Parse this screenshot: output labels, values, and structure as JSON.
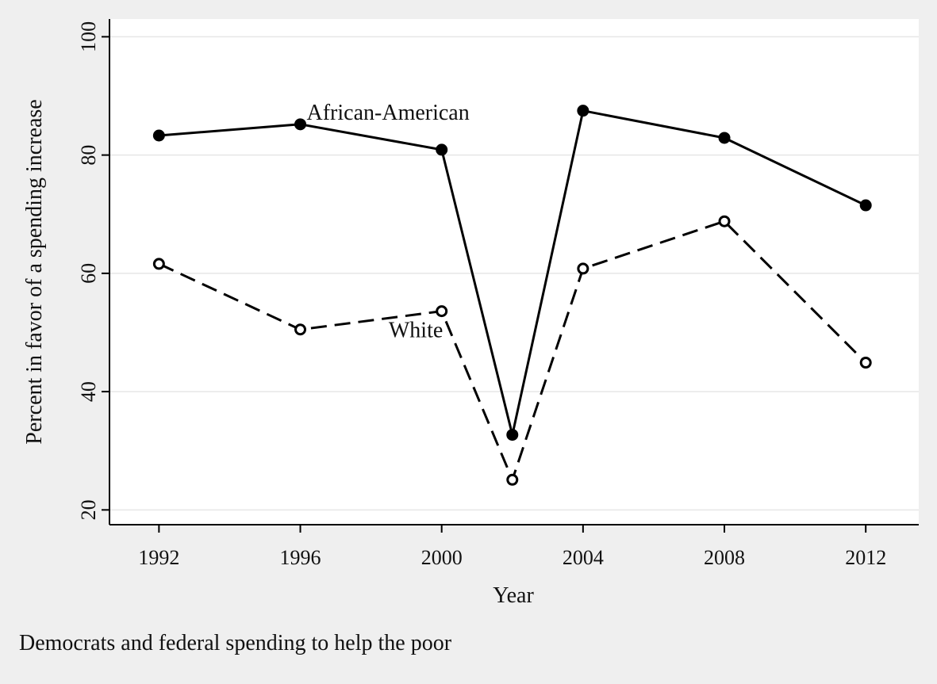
{
  "caption": "Democrats and federal spending to help the poor",
  "chart_data": {
    "type": "line",
    "title": "",
    "xlabel": "Year",
    "ylabel": "Percent in favor of a spending increase",
    "x": [
      1992,
      1996,
      2000,
      2002,
      2004,
      2008,
      2012
    ],
    "xticks": [
      1992,
      1996,
      2000,
      2004,
      2008,
      2012
    ],
    "xlim": [
      1990.6,
      2013.5
    ],
    "ylim": [
      17.5,
      103
    ],
    "yticks": [
      20,
      40,
      60,
      80,
      100
    ],
    "grid": true,
    "legend": "none",
    "series": [
      {
        "name": "African-American",
        "values": [
          83.3,
          85.2,
          80.9,
          32.7,
          87.5,
          82.9,
          71.5
        ],
        "style": "solid",
        "marker": "filled-circle",
        "color": "#000000"
      },
      {
        "name": "White",
        "values": [
          61.6,
          50.5,
          53.6,
          25.1,
          60.8,
          68.8,
          44.9
        ],
        "style": "dashed",
        "marker": "hollow-circle",
        "color": "#000000"
      }
    ],
    "annotations": [
      {
        "text": "African-American",
        "series": 0,
        "x": 1996
      },
      {
        "text": "White",
        "series": 1,
        "x": 1998.5
      }
    ]
  }
}
